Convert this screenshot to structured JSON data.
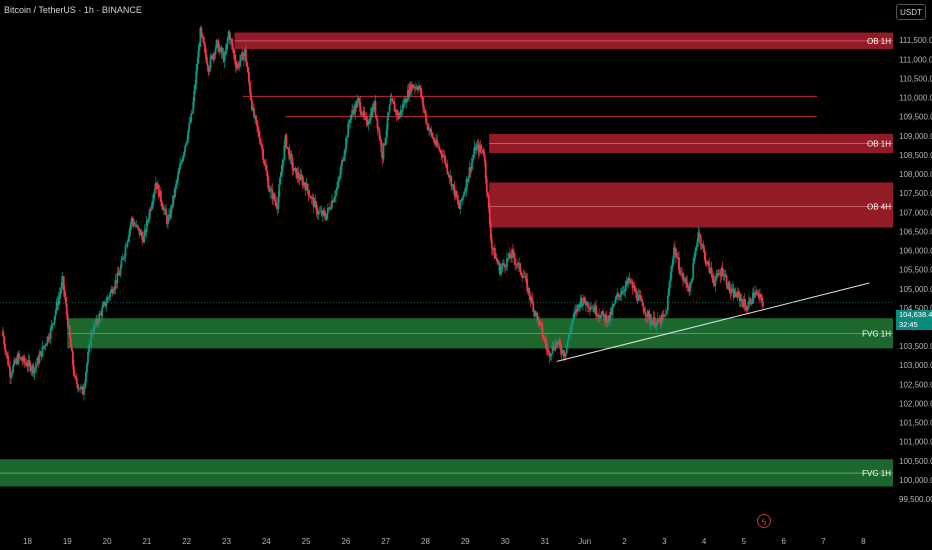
{
  "header": {
    "symbol_line": "Bitcoin / TetherUS · 1h · BINANCE"
  },
  "currency_button": "USDT",
  "last_price": {
    "value": "104,638.44",
    "countdown": "32:45"
  },
  "colors": {
    "up": "#089981",
    "down": "#f23645",
    "ob_zone": "#9b1c28",
    "fvg_zone": "#1e6e2e",
    "background": "#000000"
  },
  "icons": {
    "replay": "lightning-bolt-icon"
  },
  "chart_data": {
    "type": "candlestick",
    "y_ticks": [
      "111,500.00",
      "111,000.00",
      "110,500.00",
      "110,000.00",
      "109,500.00",
      "109,000.00",
      "108,500.00",
      "108,000.00",
      "107,500.00",
      "107,000.00",
      "106,500.00",
      "106,000.00",
      "105,500.00",
      "105,000.00",
      "104,500.00",
      "104,000.00",
      "103,500.00",
      "103,000.00",
      "102,500.00",
      "102,000.00",
      "101,500.00",
      "101,000.00",
      "100,500.00",
      "100,000.00",
      "99,500.00"
    ],
    "x_ticks": [
      "18",
      "19",
      "20",
      "21",
      "22",
      "23",
      "24",
      "25",
      "26",
      "27",
      "28",
      "29",
      "30",
      "31",
      "Jun",
      "2",
      "3",
      "4",
      "5",
      "6",
      "7",
      "8"
    ],
    "ylim": [
      99500,
      111800
    ],
    "zones": [
      {
        "label": "OB 1H",
        "top": 111700,
        "bottom": 111270,
        "mid": 111480,
        "start": "May 23",
        "kind": "ob"
      },
      {
        "label": "OB 1H",
        "top": 109050,
        "bottom": 108550,
        "mid": 108800,
        "start": "May 29",
        "kind": "ob"
      },
      {
        "label": "OB 4H",
        "top": 107780,
        "bottom": 106600,
        "mid": 107150,
        "start": "May 29",
        "kind": "ob"
      },
      {
        "label": "FVG 1H",
        "top": 104230,
        "bottom": 103440,
        "mid": 103830,
        "start": "May 19",
        "kind": "fvg"
      },
      {
        "label": "FVG 1H",
        "top": 100540,
        "bottom": 99830,
        "mid": 100180,
        "start": "May 17",
        "kind": "fvg"
      }
    ],
    "levels": [
      {
        "value": 110030
      },
      {
        "value": 109500
      }
    ],
    "trendline": {
      "from": [
        "May 31",
        103100
      ],
      "to": [
        "Jun 6",
        105150
      ]
    },
    "current_price": 104638.44,
    "key_points": [
      {
        "t": 0,
        "price": 103900
      },
      {
        "t": 2,
        "price": 102800
      },
      {
        "t": 4,
        "price": 103200
      },
      {
        "t": 8,
        "price": 102900
      },
      {
        "t": 12,
        "price": 103900
      },
      {
        "t": 15,
        "price": 105200
      },
      {
        "t": 18,
        "price": 102600
      },
      {
        "t": 20,
        "price": 102300
      },
      {
        "t": 22,
        "price": 103800
      },
      {
        "t": 25,
        "price": 104500
      },
      {
        "t": 29,
        "price": 105400
      },
      {
        "t": 32,
        "price": 106800
      },
      {
        "t": 35,
        "price": 106300
      },
      {
        "t": 38,
        "price": 107800
      },
      {
        "t": 41,
        "price": 106700
      },
      {
        "t": 44,
        "price": 108200
      },
      {
        "t": 47,
        "price": 109600
      },
      {
        "t": 49,
        "price": 111700
      },
      {
        "t": 51,
        "price": 110800
      },
      {
        "t": 53,
        "price": 111400
      },
      {
        "t": 55,
        "price": 111000
      },
      {
        "t": 56,
        "price": 111700
      },
      {
        "t": 58,
        "price": 110800
      },
      {
        "t": 60,
        "price": 111200
      },
      {
        "t": 62,
        "price": 109600
      },
      {
        "t": 64,
        "price": 108800
      },
      {
        "t": 66,
        "price": 107600
      },
      {
        "t": 68,
        "price": 107200
      },
      {
        "t": 70,
        "price": 108900
      },
      {
        "t": 72,
        "price": 108100
      },
      {
        "t": 75,
        "price": 107700
      },
      {
        "t": 78,
        "price": 107000
      },
      {
        "t": 80,
        "price": 106900
      },
      {
        "t": 83,
        "price": 107700
      },
      {
        "t": 86,
        "price": 109500
      },
      {
        "t": 88,
        "price": 109900
      },
      {
        "t": 90,
        "price": 109300
      },
      {
        "t": 92,
        "price": 109800
      },
      {
        "t": 94,
        "price": 108500
      },
      {
        "t": 96,
        "price": 109900
      },
      {
        "t": 98,
        "price": 109500
      },
      {
        "t": 101,
        "price": 110300
      },
      {
        "t": 103,
        "price": 110300
      },
      {
        "t": 105,
        "price": 109300
      },
      {
        "t": 107,
        "price": 108800
      },
      {
        "t": 109,
        "price": 108500
      },
      {
        "t": 111,
        "price": 107800
      },
      {
        "t": 113,
        "price": 107100
      },
      {
        "t": 115,
        "price": 107900
      },
      {
        "t": 117,
        "price": 108700
      },
      {
        "t": 119,
        "price": 108600
      },
      {
        "t": 121,
        "price": 106100
      },
      {
        "t": 123,
        "price": 105500
      },
      {
        "t": 126,
        "price": 105900
      },
      {
        "t": 129,
        "price": 105300
      },
      {
        "t": 131,
        "price": 104600
      },
      {
        "t": 133,
        "price": 104000
      },
      {
        "t": 135,
        "price": 103300
      },
      {
        "t": 137,
        "price": 103600
      },
      {
        "t": 139,
        "price": 103300
      },
      {
        "t": 141,
        "price": 104200
      },
      {
        "t": 143,
        "price": 104700
      },
      {
        "t": 145,
        "price": 104600
      },
      {
        "t": 148,
        "price": 104300
      },
      {
        "t": 150,
        "price": 104200
      },
      {
        "t": 152,
        "price": 104800
      },
      {
        "t": 155,
        "price": 105200
      },
      {
        "t": 158,
        "price": 104600
      },
      {
        "t": 160,
        "price": 104200
      },
      {
        "t": 162,
        "price": 104100
      },
      {
        "t": 164,
        "price": 104300
      },
      {
        "t": 166,
        "price": 106100
      },
      {
        "t": 168,
        "price": 105300
      },
      {
        "t": 170,
        "price": 105000
      },
      {
        "t": 172,
        "price": 106500
      },
      {
        "t": 174,
        "price": 105700
      },
      {
        "t": 176,
        "price": 105200
      },
      {
        "t": 178,
        "price": 105500
      },
      {
        "t": 180,
        "price": 104900
      },
      {
        "t": 182,
        "price": 104800
      },
      {
        "t": 184,
        "price": 104500
      },
      {
        "t": 186,
        "price": 104900
      },
      {
        "t": 188,
        "price": 104638
      }
    ]
  }
}
